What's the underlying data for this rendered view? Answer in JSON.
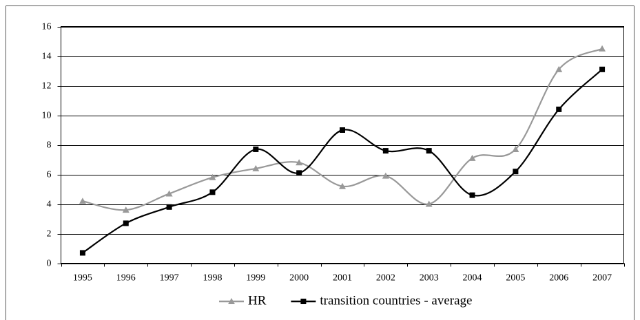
{
  "chart_data": {
    "type": "line",
    "categories": [
      "1995",
      "1996",
      "1997",
      "1998",
      "1999",
      "2000",
      "2001",
      "2002",
      "2003",
      "2004",
      "2005",
      "2006",
      "2007"
    ],
    "series": [
      {
        "name": "HR",
        "color": "#999999",
        "marker": "triangle",
        "values": [
          4.2,
          3.6,
          4.7,
          5.8,
          6.4,
          6.8,
          5.2,
          5.9,
          4.0,
          7.1,
          7.7,
          13.1,
          14.5
        ]
      },
      {
        "name": "transition countries - average",
        "color": "#000000",
        "marker": "square",
        "values": [
          0.7,
          2.7,
          3.8,
          4.8,
          7.7,
          6.1,
          9.0,
          7.6,
          7.6,
          4.6,
          6.2,
          10.4,
          13.1
        ]
      }
    ],
    "ylim": [
      0,
      16
    ],
    "yticks": [
      0,
      2,
      4,
      6,
      8,
      10,
      12,
      14,
      16
    ],
    "grid": true,
    "smooth": true,
    "legend": "bottom"
  }
}
